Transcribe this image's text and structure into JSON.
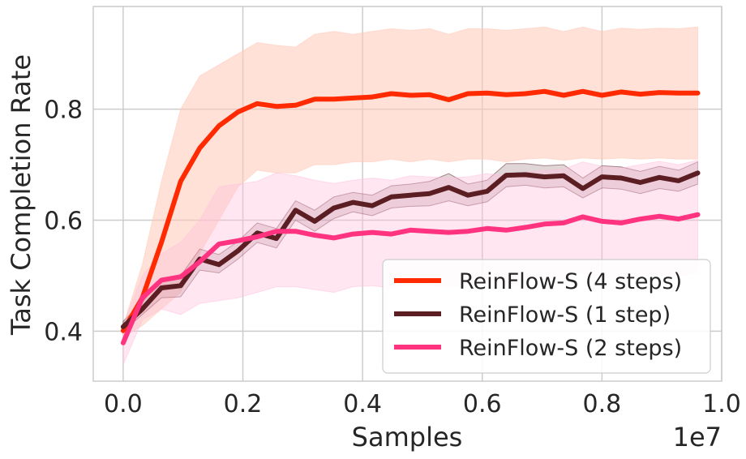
{
  "chart_data": {
    "type": "line",
    "title": "",
    "xlabel": "Samples",
    "ylabel": "Task Completion Rate",
    "x_offset_label": "1e7",
    "xlim": [
      -0.05,
      1.0
    ],
    "ylim": [
      0.31,
      0.985
    ],
    "x_ticks": [
      0.0,
      0.2,
      0.4,
      0.6,
      0.8,
      1.0
    ],
    "x_tick_labels": [
      "0.0",
      "0.2",
      "0.4",
      "0.6",
      "0.8",
      "1.0"
    ],
    "y_ticks": [
      0.4,
      0.6,
      0.8
    ],
    "y_tick_labels": [
      "0.4",
      "0.6",
      "0.8"
    ],
    "grid": true,
    "legend_position": "lower-right",
    "x": [
      0.0,
      0.032,
      0.064,
      0.096,
      0.128,
      0.16,
      0.192,
      0.224,
      0.256,
      0.288,
      0.32,
      0.352,
      0.384,
      0.416,
      0.448,
      0.48,
      0.512,
      0.544,
      0.576,
      0.608,
      0.64,
      0.672,
      0.704,
      0.736,
      0.768,
      0.8,
      0.832,
      0.864,
      0.896,
      0.928,
      0.96
    ],
    "series": [
      {
        "name": "ReinFlow-S (4 steps)",
        "color": "#ff2a00",
        "band_color": "#ffc8b8",
        "values": [
          0.401,
          0.46,
          0.56,
          0.67,
          0.73,
          0.77,
          0.795,
          0.81,
          0.805,
          0.807,
          0.818,
          0.818,
          0.82,
          0.822,
          0.828,
          0.825,
          0.826,
          0.817,
          0.828,
          0.829,
          0.826,
          0.828,
          0.832,
          0.825,
          0.832,
          0.825,
          0.831,
          0.827,
          0.83,
          0.829,
          0.829
        ],
        "lower": [
          0.39,
          0.41,
          0.44,
          0.47,
          0.54,
          0.6,
          0.66,
          0.69,
          0.685,
          0.685,
          0.7,
          0.7,
          0.705,
          0.705,
          0.71,
          0.705,
          0.71,
          0.705,
          0.71,
          0.71,
          0.705,
          0.71,
          0.712,
          0.708,
          0.712,
          0.71,
          0.712,
          0.71,
          0.712,
          0.71,
          0.71
        ],
        "upper": [
          0.41,
          0.52,
          0.67,
          0.8,
          0.86,
          0.88,
          0.9,
          0.92,
          0.915,
          0.912,
          0.935,
          0.94,
          0.935,
          0.94,
          0.945,
          0.942,
          0.945,
          0.935,
          0.945,
          0.945,
          0.942,
          0.945,
          0.948,
          0.94,
          0.948,
          0.94,
          0.946,
          0.944,
          0.946,
          0.945,
          0.948
        ]
      },
      {
        "name": "ReinFlow-S (1 step)",
        "color": "#5a1e23",
        "band_color": "#5a1e23",
        "values": [
          0.408,
          0.44,
          0.478,
          0.482,
          0.53,
          0.52,
          0.545,
          0.577,
          0.567,
          0.618,
          0.598,
          0.622,
          0.632,
          0.626,
          0.642,
          0.645,
          0.648,
          0.659,
          0.645,
          0.652,
          0.681,
          0.682,
          0.678,
          0.68,
          0.657,
          0.678,
          0.676,
          0.668,
          0.677,
          0.671,
          0.685
        ],
        "lower": [
          0.4,
          0.43,
          0.46,
          0.462,
          0.51,
          0.505,
          0.53,
          0.56,
          0.55,
          0.6,
          0.58,
          0.603,
          0.615,
          0.608,
          0.622,
          0.625,
          0.626,
          0.635,
          0.626,
          0.633,
          0.66,
          0.663,
          0.658,
          0.66,
          0.64,
          0.658,
          0.656,
          0.648,
          0.657,
          0.652,
          0.665
        ],
        "upper": [
          0.418,
          0.452,
          0.495,
          0.5,
          0.548,
          0.538,
          0.562,
          0.595,
          0.585,
          0.635,
          0.618,
          0.642,
          0.65,
          0.645,
          0.662,
          0.665,
          0.67,
          0.684,
          0.665,
          0.672,
          0.702,
          0.702,
          0.698,
          0.7,
          0.676,
          0.698,
          0.696,
          0.688,
          0.697,
          0.69,
          0.705
        ]
      },
      {
        "name": "ReinFlow-S (2 steps)",
        "color": "#ff3380",
        "band_color": "#ffc0dd",
        "values": [
          0.379,
          0.46,
          0.492,
          0.498,
          0.525,
          0.557,
          0.563,
          0.57,
          0.58,
          0.58,
          0.573,
          0.568,
          0.575,
          0.578,
          0.575,
          0.582,
          0.58,
          0.578,
          0.58,
          0.585,
          0.582,
          0.587,
          0.593,
          0.595,
          0.606,
          0.598,
          0.595,
          0.602,
          0.607,
          0.602,
          0.61
        ],
        "lower": [
          0.34,
          0.42,
          0.44,
          0.43,
          0.45,
          0.455,
          0.46,
          0.47,
          0.48,
          0.48,
          0.475,
          0.47,
          0.48,
          0.482,
          0.478,
          0.485,
          0.483,
          0.48,
          0.482,
          0.487,
          0.485,
          0.49,
          0.495,
          0.495,
          0.505,
          0.498,
          0.495,
          0.5,
          0.505,
          0.5,
          0.505
        ],
        "upper": [
          0.41,
          0.5,
          0.54,
          0.56,
          0.6,
          0.66,
          0.665,
          0.67,
          0.685,
          0.68,
          0.672,
          0.666,
          0.672,
          0.676,
          0.672,
          0.68,
          0.678,
          0.676,
          0.678,
          0.684,
          0.68,
          0.686,
          0.69,
          0.692,
          0.705,
          0.697,
          0.694,
          0.7,
          0.706,
          0.7,
          0.708
        ]
      }
    ]
  }
}
